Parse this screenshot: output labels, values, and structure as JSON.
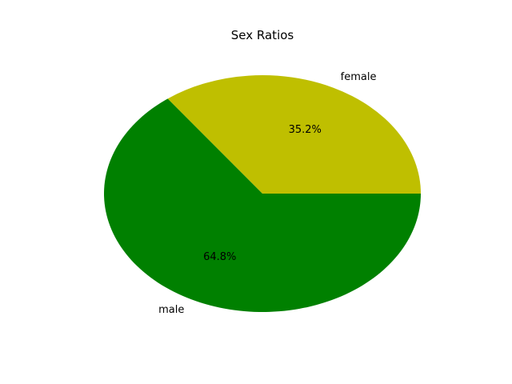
{
  "chart_data": {
    "type": "pie",
    "title": "Sex Ratios",
    "slices": [
      {
        "label": "female",
        "value": 35.2,
        "pct_label": "35.2%",
        "color": "#bfbf00"
      },
      {
        "label": "male",
        "value": 64.8,
        "pct_label": "64.8%",
        "color": "#008000"
      }
    ],
    "start_angle_deg": 0,
    "direction": "counterclockwise",
    "legend": "none"
  }
}
